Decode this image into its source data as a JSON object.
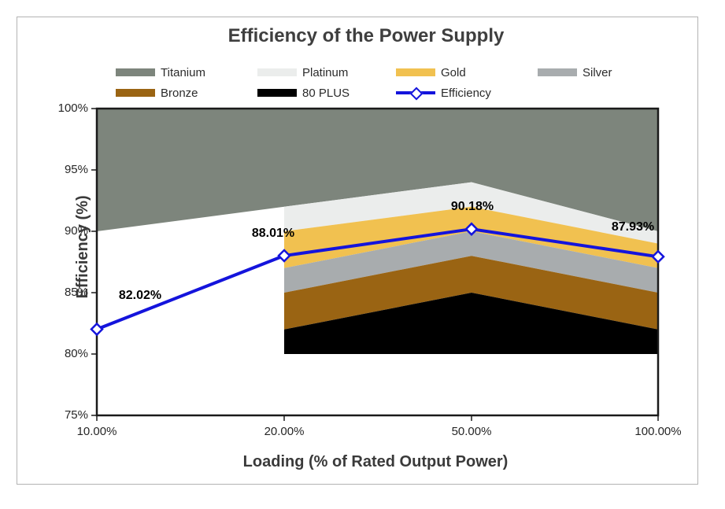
{
  "chart_data": {
    "type": "area",
    "title": "Efficiency of the Power Supply",
    "x_label": "Loading (% of Rated Output Power)",
    "y_label": "Efficiency (%)",
    "x_categories": [
      "10.00%",
      "20.00%",
      "50.00%",
      "100.00%"
    ],
    "x_values": [
      10,
      20,
      50,
      100
    ],
    "y_axis": {
      "min": 75,
      "max": 100,
      "step": 5,
      "tick_labels": [
        "100%",
        "95%",
        "90%",
        "85%",
        "80%",
        "75%"
      ]
    },
    "grid": false,
    "legend_position": "top",
    "plot_border_color": "#1a1a1a",
    "bands": [
      {
        "name": "Titanium",
        "color": "#7D857C",
        "lower": [
          90,
          92,
          94,
          90
        ],
        "upper": [
          100,
          100,
          100,
          100
        ]
      },
      {
        "name": "Platinum",
        "color": "#EBEDEC",
        "lower": [
          null,
          90,
          92,
          89
        ],
        "upper": [
          null,
          92,
          94,
          90
        ]
      },
      {
        "name": "Gold",
        "color": "#F1C150",
        "lower": [
          null,
          87,
          90,
          87
        ],
        "upper": [
          null,
          90,
          92,
          89
        ]
      },
      {
        "name": "Silver",
        "color": "#A8ACAE",
        "lower": [
          null,
          85,
          88,
          85
        ],
        "upper": [
          null,
          87,
          90,
          87
        ]
      },
      {
        "name": "Bronze",
        "color": "#9A6413",
        "lower": [
          null,
          82,
          85,
          82
        ],
        "upper": [
          null,
          85,
          88,
          85
        ]
      },
      {
        "name": "80 PLUS",
        "color": "#000000",
        "lower": [
          null,
          80,
          80,
          80
        ],
        "upper": [
          null,
          82,
          85,
          82
        ]
      }
    ],
    "line_series": {
      "name": "Efficiency",
      "color": "#1414DC",
      "marker": "diamond",
      "values": [
        82.02,
        88.01,
        90.18,
        87.93
      ],
      "data_labels": [
        "82.02%",
        "88.01%",
        "90.18%",
        "87.93%"
      ]
    },
    "legend": {
      "row1": [
        "Titanium",
        "Platinum",
        "Gold",
        "Silver"
      ],
      "row2": [
        "Bronze",
        "80 PLUS",
        "Efficiency"
      ]
    }
  }
}
